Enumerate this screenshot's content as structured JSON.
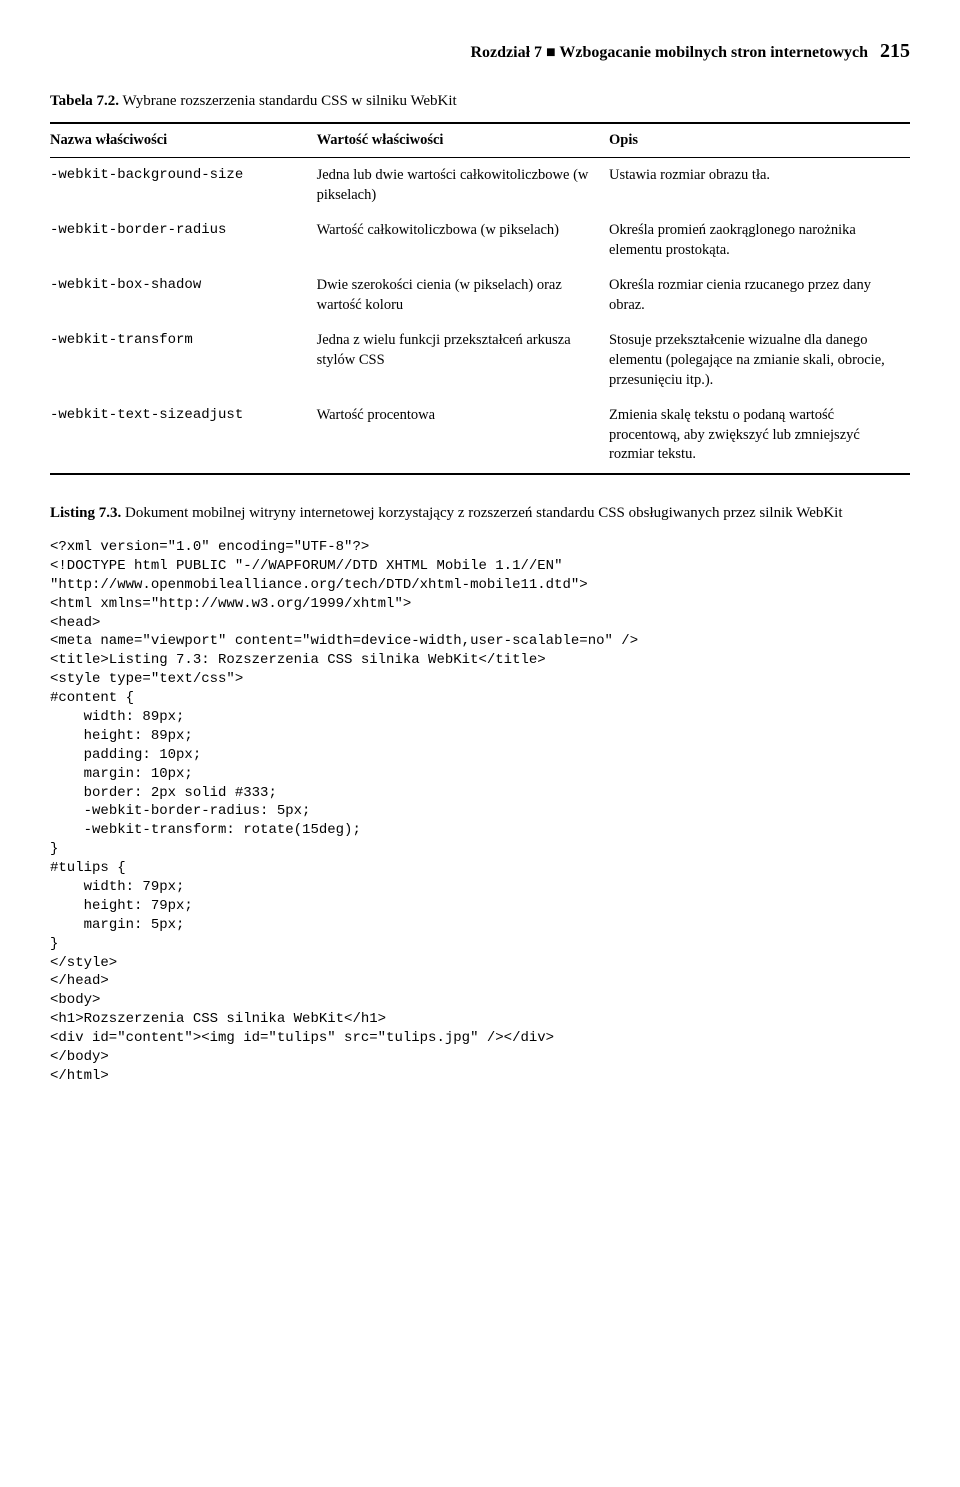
{
  "header": {
    "chapter_label": "Rozdział 7",
    "separator": " ■ ",
    "chapter_title": "Wzbogacanie mobilnych stron internetowych",
    "page_number": "215"
  },
  "table_caption": {
    "label": "Tabela 7.2.",
    "text": " Wybrane rozszerzenia standardu CSS w silniku WebKit"
  },
  "table": {
    "columns": [
      "Nazwa właściwości",
      "Wartość właściwości",
      "Opis"
    ],
    "col_widths": [
      "31%",
      "34%",
      "35%"
    ],
    "rows": [
      {
        "name": "-webkit-background-size",
        "value": "Jedna lub dwie wartości całkowitoliczbowe (w pikselach)",
        "desc": "Ustawia rozmiar obrazu tła."
      },
      {
        "name": "-webkit-border-radius",
        "value": "Wartość całkowitoliczbowa (w pikselach)",
        "desc": "Określa promień zaokrąglonego narożnika elementu prostokąta."
      },
      {
        "name": "-webkit-box-shadow",
        "value": "Dwie szerokości cienia (w pikselach) oraz wartość koloru",
        "desc": "Określa rozmiar cienia rzucanego przez dany obraz."
      },
      {
        "name": "-webkit-transform",
        "value": "Jedna z wielu funkcji przekształceń arkusza stylów CSS",
        "desc": "Stosuje przekształcenie wizualne dla danego elementu (polegające na zmianie skali, obrocie, przesunięciu itp.)."
      },
      {
        "name": "-webkit-text-sizeadjust",
        "value": "Wartość procentowa",
        "desc": "Zmienia skalę tekstu o podaną wartość procentową, aby zwiększyć lub zmniejszyć rozmiar tekstu."
      }
    ]
  },
  "listing_caption": {
    "label": "Listing 7.3.",
    "text": " Dokument mobilnej witryny internetowej korzystający z rozszerzeń standardu CSS obsługiwanych przez silnik WebKit"
  },
  "code": "<?xml version=\"1.0\" encoding=\"UTF-8\"?>\n<!DOCTYPE html PUBLIC \"-//WAPFORUM//DTD XHTML Mobile 1.1//EN\"\n\"http://www.openmobilealliance.org/tech/DTD/xhtml-mobile11.dtd\">\n<html xmlns=\"http://www.w3.org/1999/xhtml\">\n<head>\n<meta name=\"viewport\" content=\"width=device-width,user-scalable=no\" />\n<title>Listing 7.3: Rozszerzenia CSS silnika WebKit</title>\n<style type=\"text/css\">\n#content {\n    width: 89px;\n    height: 89px;\n    padding: 10px;\n    margin: 10px;\n    border: 2px solid #333;\n    -webkit-border-radius: 5px;\n    -webkit-transform: rotate(15deg);\n}\n#tulips {\n    width: 79px;\n    height: 79px;\n    margin: 5px;\n}\n</style>\n</head>\n<body>\n<h1>Rozszerzenia CSS silnika WebKit</h1>\n<div id=\"content\"><img id=\"tulips\" src=\"tulips.jpg\" /></div>\n</body>\n</html>"
}
